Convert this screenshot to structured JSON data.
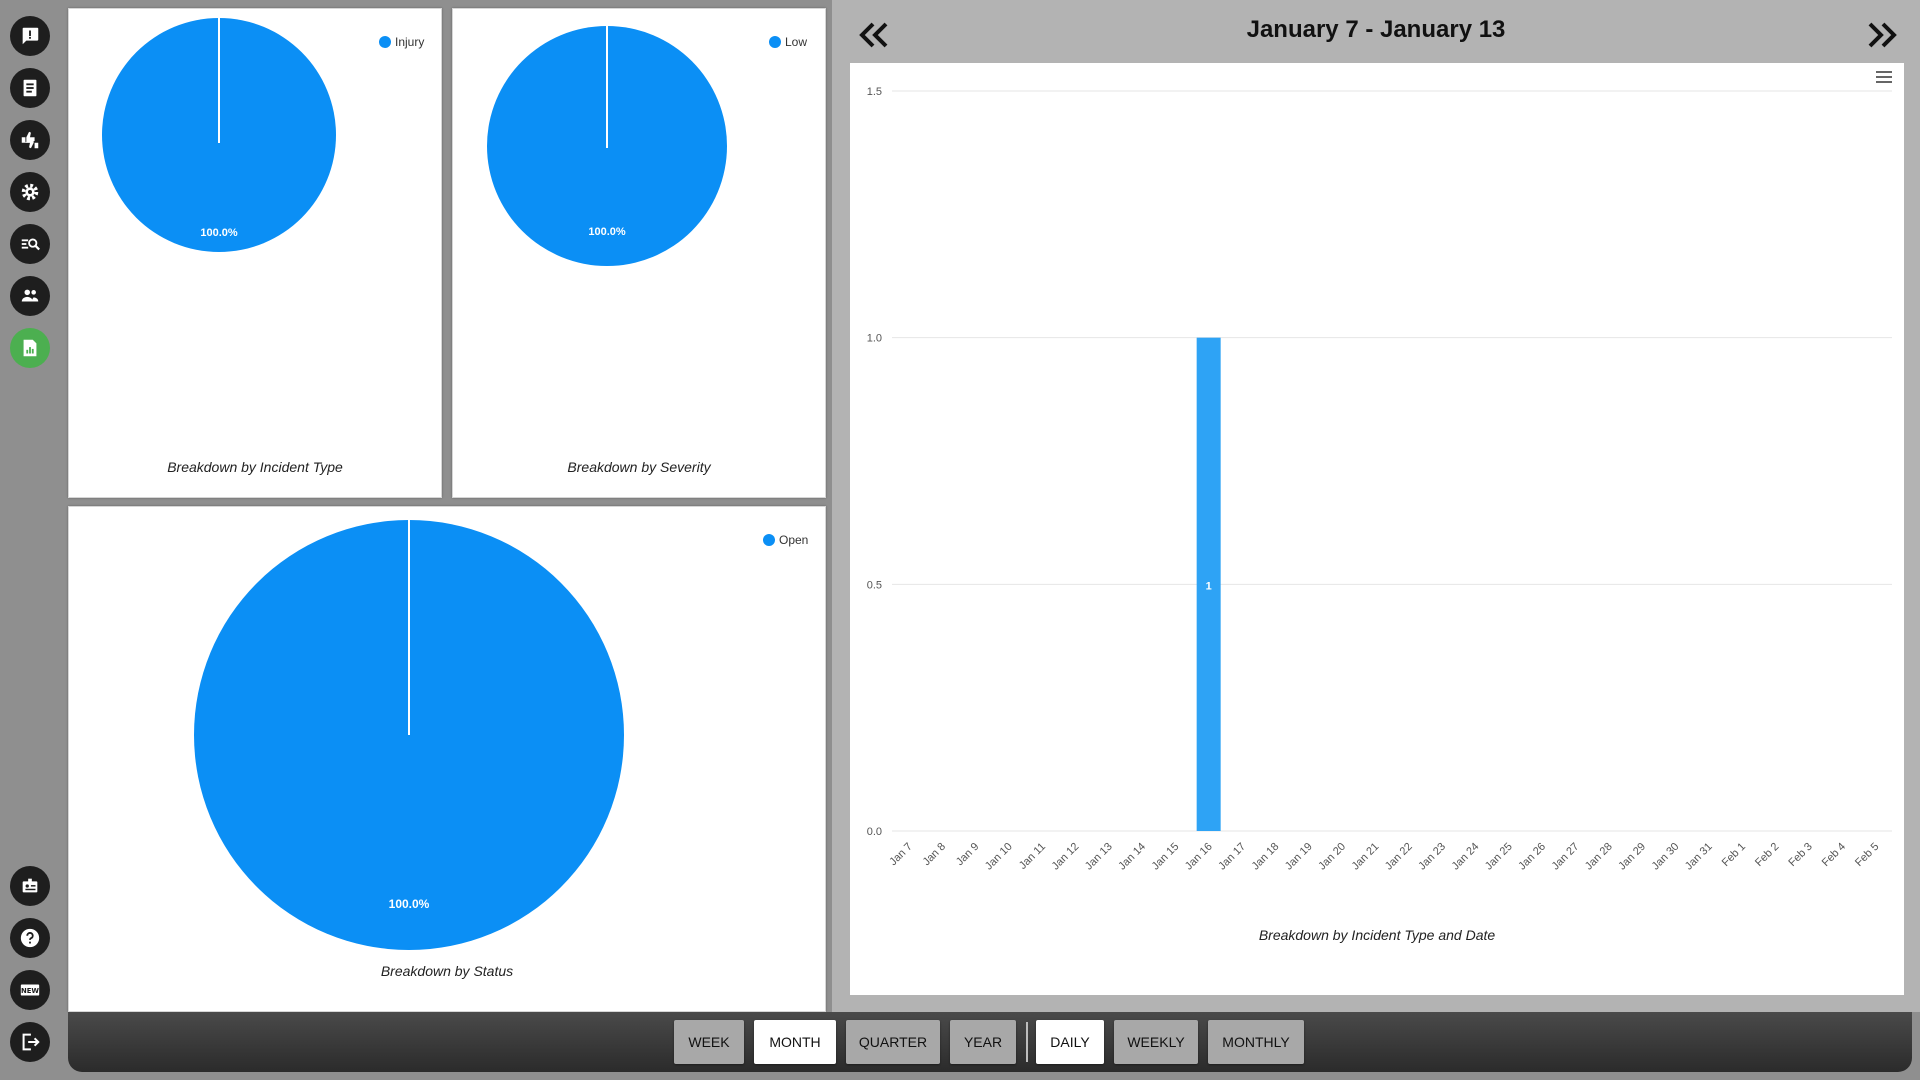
{
  "sidebar": {
    "top_items": [
      {
        "icon": "feedback-icon"
      },
      {
        "icon": "document-icon"
      },
      {
        "icon": "thumbs-icon"
      },
      {
        "icon": "gear-icon"
      },
      {
        "icon": "search-list-icon"
      },
      {
        "icon": "people-icon"
      },
      {
        "icon": "report-icon",
        "active": true
      }
    ],
    "bottom_items": [
      {
        "icon": "id-badge-icon"
      },
      {
        "icon": "help-icon"
      },
      {
        "icon": "new-icon"
      },
      {
        "icon": "logout-icon"
      }
    ]
  },
  "colors": {
    "pie": "#0b8ff5",
    "bar": "#2ea3f5",
    "active_nav": "#4caf50"
  },
  "panels": {
    "incident_type": {
      "legend": "Injury",
      "slice_label": "100.0%",
      "caption": "Breakdown by Incident Type"
    },
    "severity": {
      "legend": "Low",
      "slice_label": "100.0%",
      "caption": "Breakdown by Severity"
    },
    "status": {
      "legend": "Open",
      "slice_label": "100.0%",
      "caption": "Breakdown by Status"
    }
  },
  "week_title": "January 7 - January 13",
  "chart_data": [
    {
      "type": "pie",
      "title": "Breakdown by Incident Type",
      "labels": [
        "Injury"
      ],
      "values": [
        100.0
      ]
    },
    {
      "type": "pie",
      "title": "Breakdown by Severity",
      "labels": [
        "Low"
      ],
      "values": [
        100.0
      ]
    },
    {
      "type": "pie",
      "title": "Breakdown by Status",
      "labels": [
        "Open"
      ],
      "values": [
        100.0
      ]
    },
    {
      "type": "bar",
      "title": "Breakdown by Incident Type and Date",
      "categories": [
        "Jan 7",
        "Jan 8",
        "Jan 9",
        "Jan 10",
        "Jan 11",
        "Jan 12",
        "Jan 13",
        "Jan 14",
        "Jan 15",
        "Jan 16",
        "Jan 17",
        "Jan 18",
        "Jan 19",
        "Jan 20",
        "Jan 21",
        "Jan 22",
        "Jan 23",
        "Jan 24",
        "Jan 25",
        "Jan 26",
        "Jan 27",
        "Jan 28",
        "Jan 29",
        "Jan 30",
        "Jan 31",
        "Feb 1",
        "Feb 2",
        "Feb 3",
        "Feb 4",
        "Feb 5"
      ],
      "values": [
        0,
        0,
        0,
        0,
        0,
        0,
        0,
        0,
        0,
        1,
        0,
        0,
        0,
        0,
        0,
        0,
        0,
        0,
        0,
        0,
        0,
        0,
        0,
        0,
        0,
        0,
        0,
        0,
        0,
        0
      ],
      "data_labels": [
        "1"
      ],
      "yticks": [
        "0.0",
        "0.5",
        "1.0",
        "1.5"
      ],
      "ylim": [
        0,
        1.5
      ],
      "grid": true
    }
  ],
  "bottom_bar": {
    "range_tabs": [
      "WEEK",
      "MONTH",
      "QUARTER",
      "YEAR"
    ],
    "range_active": "MONTH",
    "granularity_tabs": [
      "DAILY",
      "WEEKLY",
      "MONTHLY"
    ],
    "granularity_active": "DAILY"
  }
}
